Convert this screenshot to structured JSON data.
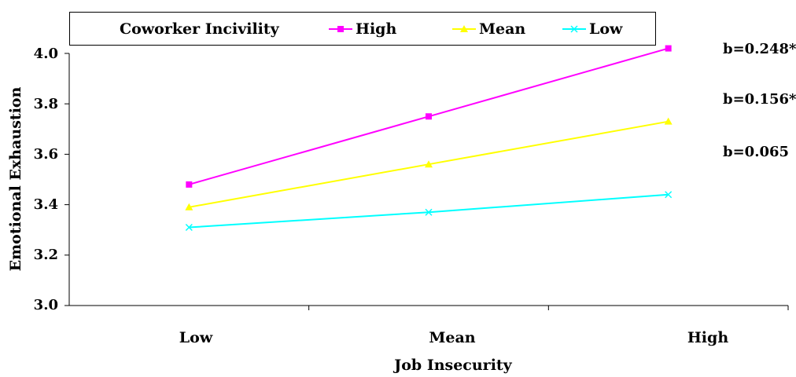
{
  "chart_data": {
    "type": "line",
    "title": "",
    "xlabel": "Job Insecurity",
    "ylabel": "Emotional Exhaustion",
    "categories": [
      "Low",
      "Mean",
      "High"
    ],
    "ylim": [
      3.0,
      4.0
    ],
    "yticks": [
      "3.0",
      "3.2",
      "3.4",
      "3.6",
      "3.8",
      "4.0"
    ],
    "ytick_values": [
      3.0,
      3.2,
      3.4,
      3.6,
      3.8,
      4.0
    ],
    "legend_title": "Coworker Incivility",
    "legend_position": "top",
    "grid": false,
    "series": [
      {
        "name": "High",
        "values": [
          3.48,
          3.75,
          4.02
        ],
        "color": "#ff00ff",
        "marker": "square",
        "slope_label": "b=0.248*"
      },
      {
        "name": "Mean",
        "values": [
          3.39,
          3.56,
          3.73
        ],
        "color": "#ffff00",
        "marker": "triangle",
        "slope_label": "b=0.156*"
      },
      {
        "name": "Low",
        "values": [
          3.31,
          3.37,
          3.44
        ],
        "color": "#00ffff",
        "marker": "x",
        "slope_label": "b=0.065"
      }
    ]
  }
}
